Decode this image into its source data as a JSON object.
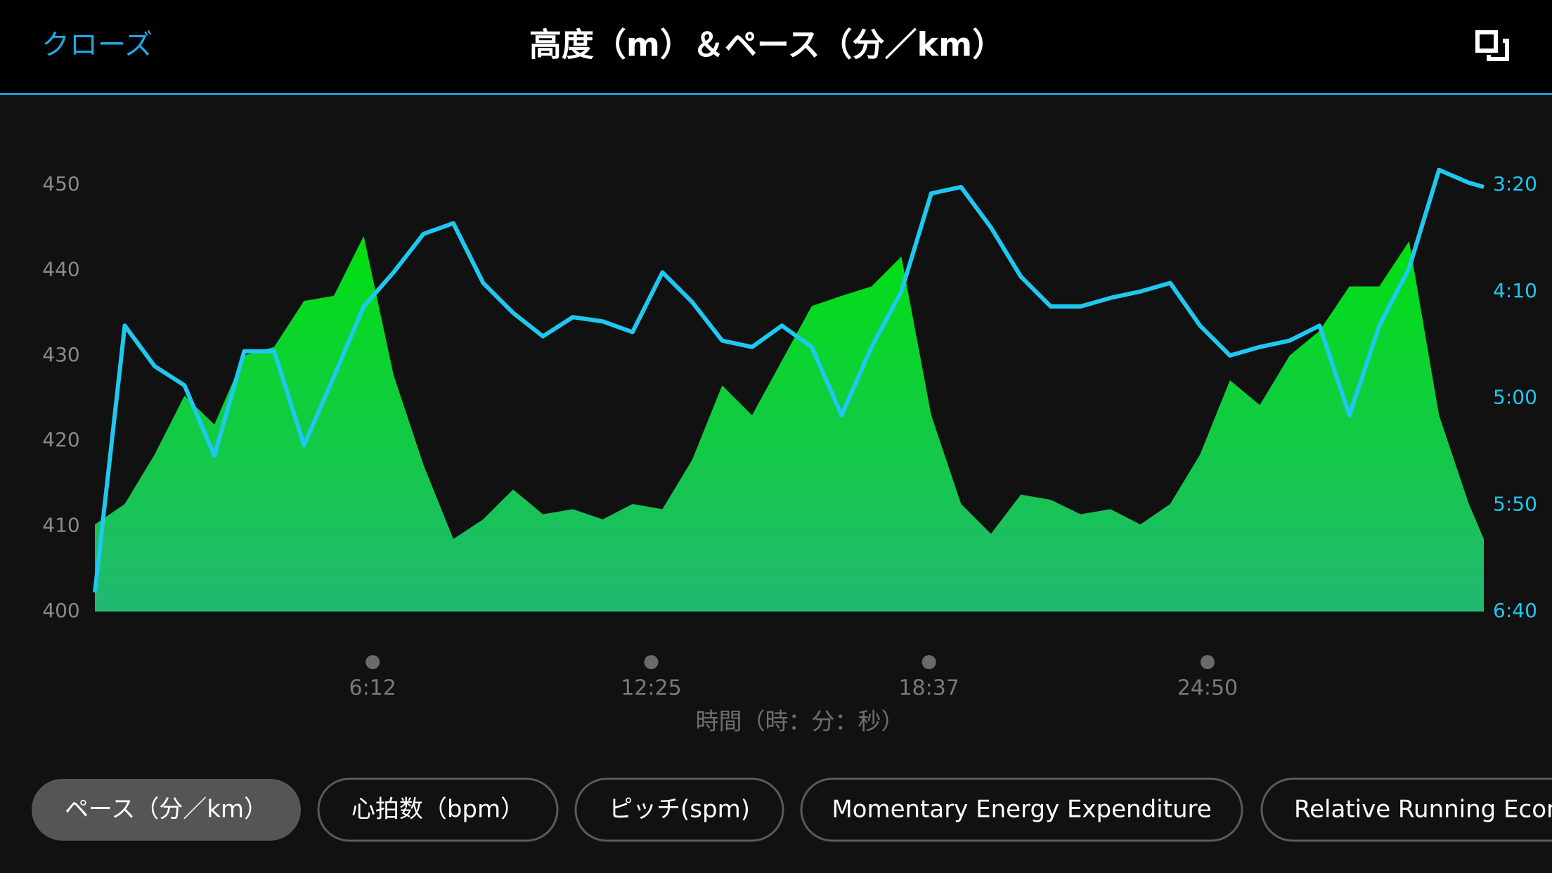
{
  "header": {
    "close": "クローズ"
  },
  "chart_data": {
    "type": "area",
    "title": "高度（m）＆ペース（分／km）",
    "x_label": "時間（時：分：秒）",
    "x": [
      0,
      40,
      80,
      120,
      160,
      200,
      240,
      280,
      320,
      360,
      400,
      440,
      480,
      520,
      560,
      600,
      640,
      680,
      720,
      760,
      800,
      840,
      880,
      920,
      960,
      1000,
      1040,
      1080,
      1120,
      1160,
      1200,
      1240,
      1280,
      1320,
      1360,
      1400,
      1440,
      1480,
      1520,
      1560,
      1600,
      1640,
      1680,
      1720,
      1760,
      1800,
      1840,
      1860
    ],
    "xlim": [
      0,
      1860
    ],
    "xticks": [
      {
        "value": 372,
        "label": "6:12"
      },
      {
        "value": 745,
        "label": "12:25"
      },
      {
        "value": 1117,
        "label": "18:37"
      },
      {
        "value": 1490,
        "label": "24:50"
      }
    ],
    "ylim": [
      400,
      450
    ],
    "yticks": [
      400,
      410,
      420,
      430,
      440,
      450
    ],
    "y2lim": [
      400,
      200
    ],
    "y2ticks": [
      {
        "value": 400,
        "label": "6:40"
      },
      {
        "value": 350,
        "label": "5:50"
      },
      {
        "value": 300,
        "label": "5:00"
      },
      {
        "value": 250,
        "label": "4:10"
      },
      {
        "value": 200,
        "label": "3:20"
      }
    ],
    "series": [
      {
        "type": "area",
        "color": "#00e010",
        "values": [
          410.2,
          412.6,
          418.4,
          425.3,
          421.9,
          430,
          431,
          436.4,
          437,
          444,
          427.7,
          417.2,
          408.5,
          410.8,
          414.3,
          411.4,
          412,
          410.8,
          412.6,
          412,
          417.8,
          426.5,
          423,
          429.4,
          435.8,
          437,
          438.1,
          441.6,
          423,
          412.6,
          409.1,
          413.7,
          413.1,
          411.4,
          412,
          410.2,
          412.6,
          418.4,
          427.1,
          424.2,
          430,
          432.9,
          438.1,
          438.1,
          443.4,
          423,
          412.6,
          408.5
        ]
      },
      {
        "type": "line",
        "axis": "y2",
        "color": "#1ec8f0",
        "values": [
          391,
          266,
          285,
          294,
          327,
          278,
          278,
          322,
          290,
          257,
          241,
          223,
          218,
          246,
          260,
          271,
          262,
          264,
          269,
          241,
          255,
          273,
          276,
          266,
          276,
          308,
          276,
          250,
          204,
          201,
          220,
          243,
          257,
          257,
          253,
          250,
          246,
          266,
          280,
          276,
          273,
          266,
          308,
          266,
          239,
          193,
          199,
          201
        ]
      }
    ]
  },
  "tabs": [
    "ペース（分／km）",
    "心拍数（bpm）",
    "ピッチ(spm)",
    "Momentary Energy Expenditure",
    "Relative Running Economy"
  ]
}
